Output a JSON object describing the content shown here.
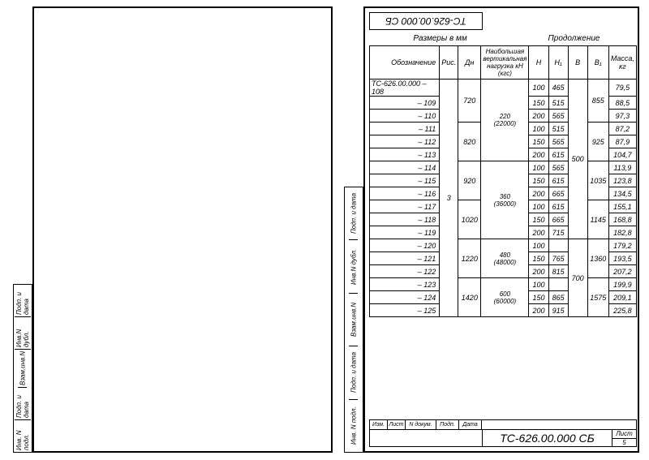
{
  "doc_code": "ТС-626.00.000 СБ",
  "doc_code_topreversed": "ТС-626.00.000 СБ",
  "superhead": {
    "left": "Размеры в мм",
    "right": "Продолжение"
  },
  "headers": {
    "designation": "Обозначение",
    "ris": "Рис.",
    "dn": "Дн",
    "load": "Наибольшая вертикальная нагрузка кН (кгс)",
    "H": "H",
    "H1": "H₁",
    "B": "B",
    "B1": "B₁",
    "mass": "Масса, кг"
  },
  "ris_value": "3",
  "groups": [
    {
      "dn": "720",
      "load": "220 (22000)",
      "rows": [
        {
          "des": "ТС-626.00.000 – 108",
          "H": "100",
          "H1": "465",
          "mass": "79,5",
          "first": true
        },
        {
          "des": "– 109",
          "H": "150",
          "H1": "515",
          "mass": "88,5"
        },
        {
          "des": "– 110",
          "H": "200",
          "H1": "565",
          "mass": "97,3"
        }
      ],
      "B": "",
      "B1": "855",
      "B_span": 6,
      "B1_span": 3,
      "load_span": 6,
      "B_val": "500"
    },
    {
      "dn": "820",
      "rows": [
        {
          "des": "– 111",
          "H": "100",
          "H1": "515",
          "mass": "87,2"
        },
        {
          "des": "– 112",
          "H": "150",
          "H1": "565",
          "mass": "87,9"
        },
        {
          "des": "– 113",
          "H": "200",
          "H1": "615",
          "mass": "104,7"
        }
      ],
      "B1": "925",
      "B1_span": 3
    },
    {
      "dn": "920",
      "load": "360 (36000)",
      "rows": [
        {
          "des": "– 114",
          "H": "100",
          "H1": "565",
          "mass": "113,9"
        },
        {
          "des": "– 115",
          "H": "150",
          "H1": "615",
          "mass": "123,8"
        },
        {
          "des": "– 116",
          "H": "200",
          "H1": "665",
          "mass": "134,5"
        }
      ],
      "B1": "1035",
      "B1_span": 3,
      "load_span": 6
    },
    {
      "dn": "1020",
      "rows": [
        {
          "des": "– 117",
          "H": "100",
          "H1": "615",
          "mass": "155,1"
        },
        {
          "des": "– 118",
          "H": "150",
          "H1": "665",
          "mass": "168,8"
        },
        {
          "des": "– 119",
          "H": "200",
          "H1": "715",
          "mass": "182,8"
        }
      ],
      "B1": "1145",
      "B1_span": 3
    },
    {
      "dn": "1220",
      "load": "480 (48000)",
      "rows": [
        {
          "des": "– 120",
          "H": "100",
          "H1": "",
          "mass": "179,2"
        },
        {
          "des": "– 121",
          "H": "150",
          "H1": "765",
          "mass": "193,5"
        },
        {
          "des": "– 122",
          "H": "200",
          "H1": "815",
          "mass": "207,2"
        }
      ],
      "B": "700",
      "B_span": 6,
      "B1": "1360",
      "B1_span": 3,
      "load_span": 3
    },
    {
      "dn": "1420",
      "load": "600 (60000)",
      "rows": [
        {
          "des": "– 123",
          "H": "100",
          "H1": "",
          "mass": "199,9"
        },
        {
          "des": "– 124",
          "H": "150",
          "H1": "865",
          "mass": "209,1"
        },
        {
          "des": "– 125",
          "H": "200",
          "H1": "915",
          "mass": "225,8"
        }
      ],
      "B1": "1575",
      "B1_span": 3,
      "load_span": 3
    }
  ],
  "title_block": {
    "cols": [
      "Изм.",
      "Лист",
      "N докум.",
      "Подп.",
      "Дата"
    ],
    "sheet_label": "Лист",
    "sheet_num": "5"
  },
  "vstamp": [
    "Инв. N подл.",
    "Подп. и дата",
    "Взам.инв.N",
    "Инв.N дубл.",
    "Подп. и дата"
  ]
}
